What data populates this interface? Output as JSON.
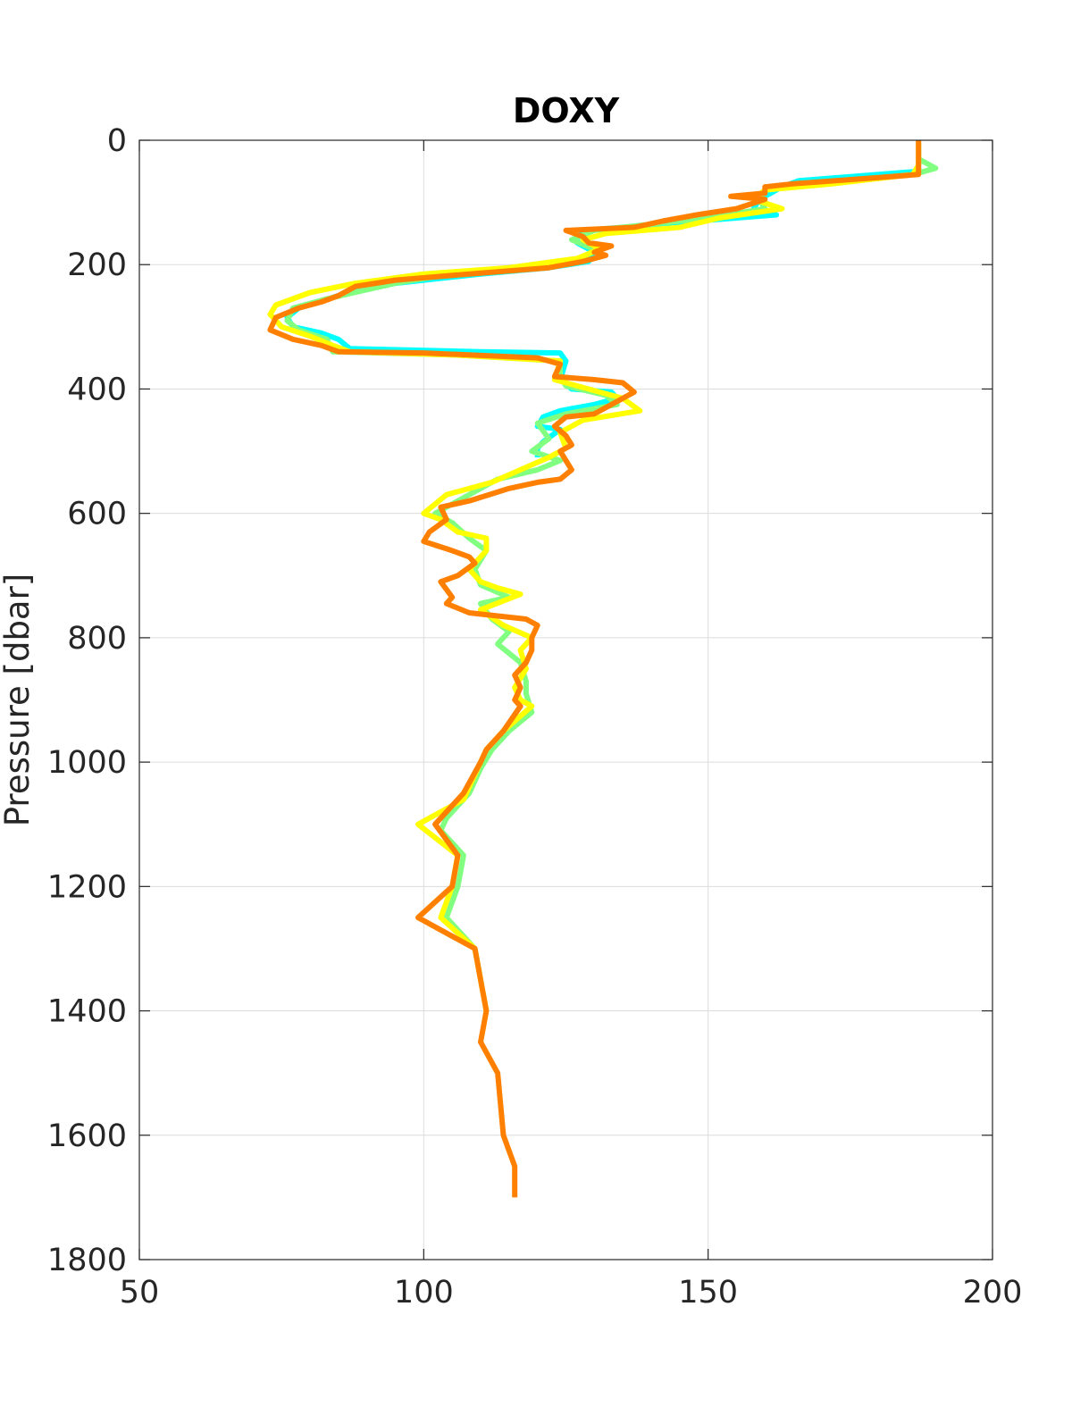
{
  "chart_data": {
    "type": "line",
    "title": "DOXY",
    "xlabel": "",
    "ylabel": "Pressure [dbar]",
    "xlim": [
      50,
      200
    ],
    "ylim": [
      0,
      1800
    ],
    "y_reversed": true,
    "grid": true,
    "xticks": [
      50,
      100,
      150,
      200
    ],
    "xtick_labels": [
      "50",
      "100",
      "150",
      "200"
    ],
    "yticks": [
      0,
      200,
      400,
      600,
      800,
      1000,
      1200,
      1400,
      1600,
      1800
    ],
    "ytick_labels": [
      "0",
      "200",
      "400",
      "600",
      "800",
      "1000",
      "1200",
      "1400",
      "1600",
      "1800"
    ],
    "series": [
      {
        "color": "#00ffff",
        "points": [
          [
            187,
            5
          ],
          [
            187,
            50
          ],
          [
            166,
            65
          ],
          [
            163,
            75
          ],
          [
            161,
            85
          ],
          [
            159,
            95
          ],
          [
            158,
            110
          ],
          [
            162,
            120
          ],
          [
            148,
            130
          ],
          [
            135,
            140
          ],
          [
            128,
            145
          ],
          [
            127,
            155
          ],
          [
            127,
            165
          ],
          [
            130,
            180
          ],
          [
            129,
            195
          ],
          [
            122,
            205
          ],
          [
            110,
            215
          ],
          [
            95,
            230
          ],
          [
            85,
            250
          ],
          [
            78,
            270
          ],
          [
            76,
            285
          ],
          [
            77,
            300
          ],
          [
            82,
            310
          ],
          [
            85,
            320
          ],
          [
            87,
            335
          ],
          [
            110,
            340
          ],
          [
            124,
            342
          ],
          [
            125,
            355
          ],
          [
            124,
            385
          ],
          [
            126,
            400
          ],
          [
            133,
            405
          ],
          [
            134,
            415
          ],
          [
            130,
            425
          ],
          [
            124,
            435
          ],
          [
            121,
            445
          ],
          [
            120,
            460
          ],
          [
            124,
            465
          ],
          [
            121,
            485
          ],
          [
            120,
            495
          ],
          [
            120,
            510
          ]
        ]
      },
      {
        "color": "#80ff80",
        "points": [
          [
            187,
            5
          ],
          [
            187,
            30
          ],
          [
            190,
            45
          ],
          [
            186,
            55
          ],
          [
            170,
            70
          ],
          [
            160,
            80
          ],
          [
            159,
            95
          ],
          [
            160,
            110
          ],
          [
            150,
            125
          ],
          [
            140,
            135
          ],
          [
            130,
            145
          ],
          [
            126,
            160
          ],
          [
            130,
            175
          ],
          [
            128,
            190
          ],
          [
            120,
            200
          ],
          [
            105,
            215
          ],
          [
            95,
            230
          ],
          [
            83,
            255
          ],
          [
            77,
            270
          ],
          [
            76,
            290
          ],
          [
            78,
            305
          ],
          [
            83,
            320
          ],
          [
            84,
            340
          ],
          [
            105,
            345
          ],
          [
            124,
            355
          ],
          [
            124,
            380
          ],
          [
            125,
            395
          ],
          [
            132,
            410
          ],
          [
            134,
            425
          ],
          [
            125,
            440
          ],
          [
            120,
            455
          ],
          [
            122,
            480
          ],
          [
            119,
            500
          ],
          [
            124,
            515
          ],
          [
            120,
            530
          ],
          [
            113,
            545
          ],
          [
            110,
            560
          ],
          [
            106,
            580
          ],
          [
            102,
            600
          ],
          [
            105,
            615
          ],
          [
            108,
            640
          ],
          [
            111,
            660
          ],
          [
            109,
            690
          ],
          [
            110,
            715
          ],
          [
            115,
            735
          ],
          [
            110,
            745
          ],
          [
            112,
            770
          ],
          [
            115,
            790
          ],
          [
            113,
            810
          ],
          [
            117,
            840
          ],
          [
            118,
            870
          ],
          [
            118,
            890
          ],
          [
            119,
            920
          ],
          [
            115,
            950
          ],
          [
            112,
            980
          ],
          [
            110,
            1010
          ],
          [
            108,
            1050
          ],
          [
            104,
            1090
          ],
          [
            103,
            1110
          ],
          [
            107,
            1150
          ],
          [
            106,
            1200
          ],
          [
            104,
            1250
          ],
          [
            109,
            1300
          ],
          [
            110,
            1350
          ],
          [
            111,
            1400
          ]
        ]
      },
      {
        "color": "#ffff00",
        "points": [
          [
            187,
            5
          ],
          [
            187,
            40
          ],
          [
            186,
            55
          ],
          [
            172,
            70
          ],
          [
            160,
            80
          ],
          [
            158,
            95
          ],
          [
            163,
            110
          ],
          [
            152,
            125
          ],
          [
            145,
            140
          ],
          [
            132,
            150
          ],
          [
            128,
            160
          ],
          [
            131,
            175
          ],
          [
            127,
            190
          ],
          [
            115,
            205
          ],
          [
            100,
            215
          ],
          [
            88,
            230
          ],
          [
            80,
            245
          ],
          [
            74,
            265
          ],
          [
            73,
            280
          ],
          [
            75,
            300
          ],
          [
            80,
            315
          ],
          [
            84,
            330
          ],
          [
            87,
            340
          ],
          [
            105,
            345
          ],
          [
            124,
            355
          ],
          [
            123,
            385
          ],
          [
            127,
            395
          ],
          [
            135,
            415
          ],
          [
            138,
            435
          ],
          [
            128,
            450
          ],
          [
            124,
            470
          ],
          [
            125,
            495
          ],
          [
            122,
            510
          ],
          [
            117,
            530
          ],
          [
            112,
            550
          ],
          [
            104,
            570
          ],
          [
            100,
            600
          ],
          [
            103,
            610
          ],
          [
            106,
            630
          ],
          [
            111,
            640
          ],
          [
            111,
            660
          ],
          [
            108,
            690
          ],
          [
            110,
            710
          ],
          [
            113,
            720
          ],
          [
            117,
            730
          ],
          [
            110,
            755
          ],
          [
            114,
            780
          ],
          [
            119,
            800
          ],
          [
            117,
            820
          ],
          [
            118,
            850
          ],
          [
            116,
            880
          ],
          [
            117,
            900
          ],
          [
            119,
            910
          ],
          [
            114,
            950
          ],
          [
            111,
            980
          ],
          [
            109,
            1020
          ],
          [
            107,
            1060
          ],
          [
            99,
            1100
          ],
          [
            106,
            1150
          ],
          [
            105,
            1200
          ],
          [
            103,
            1250
          ],
          [
            109,
            1300
          ],
          [
            111,
            1400
          ]
        ]
      },
      {
        "color": "#ff8000",
        "points": [
          [
            187,
            0
          ],
          [
            187,
            40
          ],
          [
            187,
            55
          ],
          [
            180,
            60
          ],
          [
            165,
            70
          ],
          [
            160,
            75
          ],
          [
            160,
            85
          ],
          [
            154,
            90
          ],
          [
            160,
            95
          ],
          [
            155,
            110
          ],
          [
            148,
            120
          ],
          [
            142,
            130
          ],
          [
            137,
            140
          ],
          [
            125,
            145
          ],
          [
            128,
            155
          ],
          [
            129,
            165
          ],
          [
            133,
            170
          ],
          [
            130,
            180
          ],
          [
            132,
            185
          ],
          [
            128,
            195
          ],
          [
            122,
            205
          ],
          [
            108,
            215
          ],
          [
            95,
            225
          ],
          [
            88,
            235
          ],
          [
            85,
            250
          ],
          [
            82,
            260
          ],
          [
            78,
            270
          ],
          [
            74,
            285
          ],
          [
            73,
            305
          ],
          [
            77,
            320
          ],
          [
            82,
            330
          ],
          [
            85,
            340
          ],
          [
            100,
            342
          ],
          [
            120,
            350
          ],
          [
            124,
            360
          ],
          [
            123,
            380
          ],
          [
            130,
            385
          ],
          [
            135,
            390
          ],
          [
            137,
            405
          ],
          [
            134,
            420
          ],
          [
            130,
            440
          ],
          [
            125,
            445
          ],
          [
            123,
            460
          ],
          [
            125,
            475
          ],
          [
            126,
            490
          ],
          [
            124,
            500
          ],
          [
            125,
            515
          ],
          [
            126,
            530
          ],
          [
            124,
            545
          ],
          [
            120,
            550
          ],
          [
            115,
            560
          ],
          [
            108,
            580
          ],
          [
            103,
            590
          ],
          [
            104,
            610
          ],
          [
            101,
            630
          ],
          [
            100,
            645
          ],
          [
            105,
            660
          ],
          [
            108,
            670
          ],
          [
            109,
            680
          ],
          [
            106,
            700
          ],
          [
            103,
            710
          ],
          [
            105,
            735
          ],
          [
            104,
            745
          ],
          [
            108,
            760
          ],
          [
            118,
            770
          ],
          [
            120,
            780
          ],
          [
            119,
            800
          ],
          [
            119,
            820
          ],
          [
            118,
            840
          ],
          [
            116,
            860
          ],
          [
            117,
            880
          ],
          [
            116,
            900
          ],
          [
            117,
            910
          ],
          [
            114,
            950
          ],
          [
            111,
            980
          ],
          [
            110,
            1000
          ],
          [
            107,
            1050
          ],
          [
            102,
            1100
          ],
          [
            106,
            1150
          ],
          [
            105,
            1200
          ],
          [
            99,
            1250
          ],
          [
            109,
            1300
          ],
          [
            110,
            1350
          ],
          [
            111,
            1400
          ],
          [
            110,
            1450
          ],
          [
            113,
            1500
          ],
          [
            114,
            1600
          ],
          [
            116,
            1650
          ],
          [
            116,
            1700
          ]
        ]
      }
    ]
  }
}
